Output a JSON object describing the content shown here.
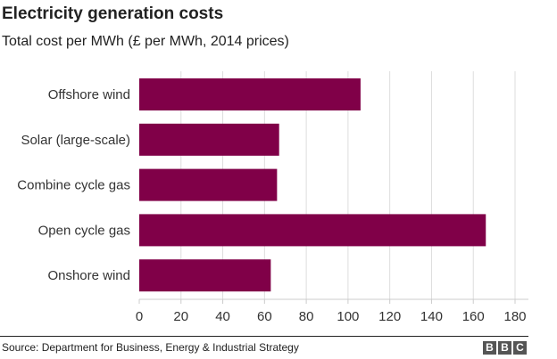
{
  "chart_data": {
    "type": "bar",
    "orientation": "horizontal",
    "title": "Electricity generation costs",
    "subtitle": "Total cost per MWh (£ per MWh, 2014 prices)",
    "categories": [
      "Offshore wind",
      "Solar (large-scale)",
      "Combine cycle gas",
      "Open cycle gas",
      "Onshore wind"
    ],
    "values": [
      106,
      67,
      66,
      166,
      63
    ],
    "xlim": [
      0,
      185
    ],
    "xticks": [
      "0",
      "20",
      "40",
      "60",
      "80",
      "100",
      "120",
      "140",
      "160",
      "180"
    ],
    "grid": true,
    "bar_color": "#800048"
  },
  "footer": {
    "source": "Source: Department for Business, Energy & Industrial Strategy",
    "logo": [
      "B",
      "B",
      "C"
    ]
  }
}
